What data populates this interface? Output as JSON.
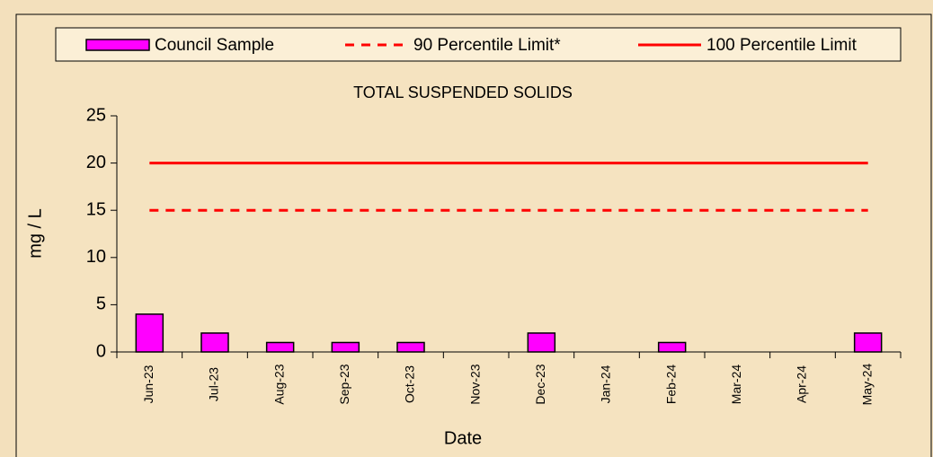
{
  "chart_data": {
    "type": "bar",
    "title": "TOTAL SUSPENDED SOLIDS",
    "x_label": "Date",
    "y_label": "mg / L",
    "categories": [
      "Jun-23",
      "Jul-23",
      "Aug-23",
      "Sep-23",
      "Oct-23",
      "Nov-23",
      "Dec-23",
      "Jan-24",
      "Feb-24",
      "Mar-24",
      "Apr-24",
      "May-24"
    ],
    "series": [
      {
        "name": "Council Sample",
        "type": "bar",
        "color": "#ff00ff",
        "values": [
          4,
          2,
          1,
          1,
          1,
          null,
          2,
          null,
          1,
          null,
          null,
          2
        ]
      },
      {
        "name": "90 Percentile Limit*",
        "type": "line",
        "style": "dashed",
        "color": "#ff0000",
        "values": [
          15,
          15,
          15,
          15,
          15,
          15,
          15,
          15,
          15,
          15,
          15,
          15
        ]
      },
      {
        "name": "100 Percentile Limit",
        "type": "line",
        "style": "solid",
        "color": "#ff0000",
        "values": [
          20,
          20,
          20,
          20,
          20,
          20,
          20,
          20,
          20,
          20,
          20,
          20
        ]
      }
    ],
    "ylim": [
      0,
      25
    ],
    "yticks": [
      0,
      5,
      10,
      15,
      20,
      25
    ],
    "grid": false,
    "legend": "top"
  }
}
